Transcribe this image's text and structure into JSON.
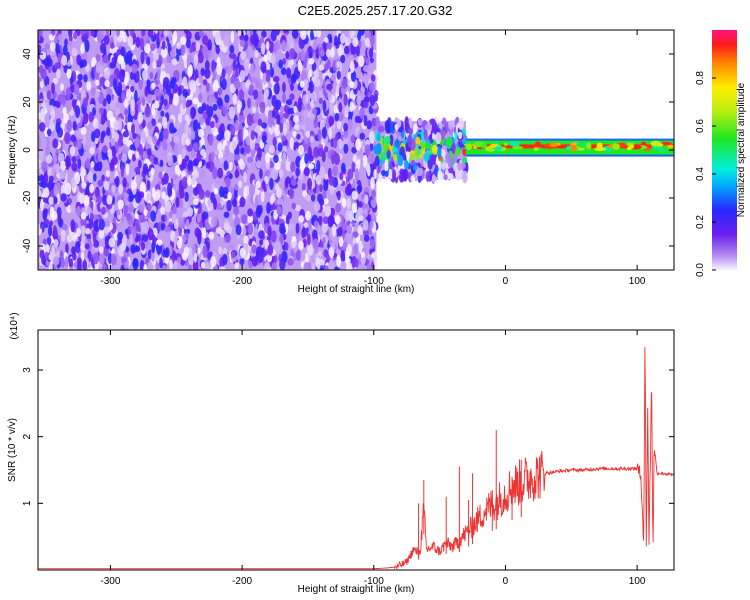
{
  "title": "C2E5.2025.257.17.20.G32",
  "chart_data": [
    {
      "type": "heatmap",
      "xlabel": "Height of straight line (km)",
      "ylabel": "Frequency (Hz)",
      "xlim": [
        -355,
        128
      ],
      "ylim": [
        -50,
        50
      ],
      "xticks": [
        -300,
        -200,
        -100,
        0,
        100
      ],
      "yticks": [
        -40,
        -20,
        0,
        20,
        40
      ],
      "colorbar": {
        "label": "Normalized spectral amplitude",
        "range": [
          0,
          1
        ],
        "ticks": [
          0.0,
          0.2,
          0.4,
          0.6,
          0.8
        ],
        "tick_labels": [
          "0.0",
          "0.2",
          "0.4",
          "0.6",
          "0.8"
        ]
      },
      "regions": [
        {
          "x_from": -355,
          "x_to": -98,
          "freq_from": -50,
          "freq_to": 50,
          "amplitude": 0.15,
          "pattern": "speckle"
        },
        {
          "x_from": -98,
          "x_to": -30,
          "freq_from": -12,
          "freq_to": 12,
          "amplitude": 0.35,
          "pattern": "speckle"
        },
        {
          "x_from": -30,
          "x_to": 128,
          "freq_from": -1.5,
          "freq_to": 3.5,
          "amplitude": 0.9,
          "pattern": "band",
          "center_freq": 1.5
        }
      ]
    },
    {
      "type": "line",
      "xlabel": "Height of straight line (km)",
      "ylabel": "SNR (10 * v/v)",
      "yunit": "(x10⁴)",
      "xlim": [
        -355,
        128
      ],
      "ylim": [
        0,
        3.6
      ],
      "xticks": [
        -300,
        -200,
        -100,
        0,
        100
      ],
      "yticks": [
        1,
        2,
        3
      ],
      "series": [
        {
          "color": "#ee3333",
          "points": [
            [
              -355,
              0.02
            ],
            [
              -200,
              0.02
            ],
            [
              -100,
              0.02
            ],
            [
              -90,
              0.03
            ],
            [
              -82,
              0.05
            ],
            [
              -75,
              0.12
            ],
            [
              -70,
              0.3
            ],
            [
              -65,
              0.25
            ],
            [
              -62,
              0.9
            ],
            [
              -60,
              0.3
            ],
            [
              -55,
              0.35
            ],
            [
              -50,
              0.28
            ],
            [
              -45,
              0.4
            ],
            [
              -40,
              0.35
            ],
            [
              -35,
              0.45
            ],
            [
              -30,
              0.55
            ],
            [
              -25,
              0.65
            ],
            [
              -20,
              0.78
            ],
            [
              -15,
              0.9
            ],
            [
              -10,
              0.98
            ],
            [
              -5,
              1.05
            ],
            [
              0,
              1.15
            ],
            [
              5,
              1.25
            ],
            [
              10,
              1.3
            ],
            [
              15,
              1.35
            ],
            [
              20,
              1.4
            ],
            [
              30,
              1.45
            ],
            [
              40,
              1.48
            ],
            [
              50,
              1.5
            ],
            [
              60,
              1.5
            ],
            [
              70,
              1.52
            ],
            [
              80,
              1.52
            ],
            [
              90,
              1.52
            ],
            [
              100,
              1.52
            ],
            [
              103,
              1.4
            ],
            [
              105,
              0.4
            ],
            [
              106,
              3.5
            ],
            [
              107,
              0.3
            ],
            [
              108,
              2.5
            ],
            [
              109,
              0.4
            ],
            [
              110,
              1.6
            ],
            [
              111,
              2.9
            ],
            [
              112,
              0.3
            ],
            [
              113,
              1.9
            ],
            [
              115,
              1.45
            ],
            [
              120,
              1.45
            ],
            [
              128,
              1.42
            ]
          ],
          "spikes": [
            [
              -66,
              1.0
            ],
            [
              -62,
              1.35
            ],
            [
              -45,
              1.1
            ],
            [
              -35,
              1.55
            ],
            [
              -28,
              1.05
            ],
            [
              -25,
              1.45
            ],
            [
              -10,
              1.2
            ],
            [
              -7,
              2.1
            ],
            [
              5,
              1.4
            ],
            [
              12,
              1.65
            ]
          ]
        }
      ]
    }
  ]
}
